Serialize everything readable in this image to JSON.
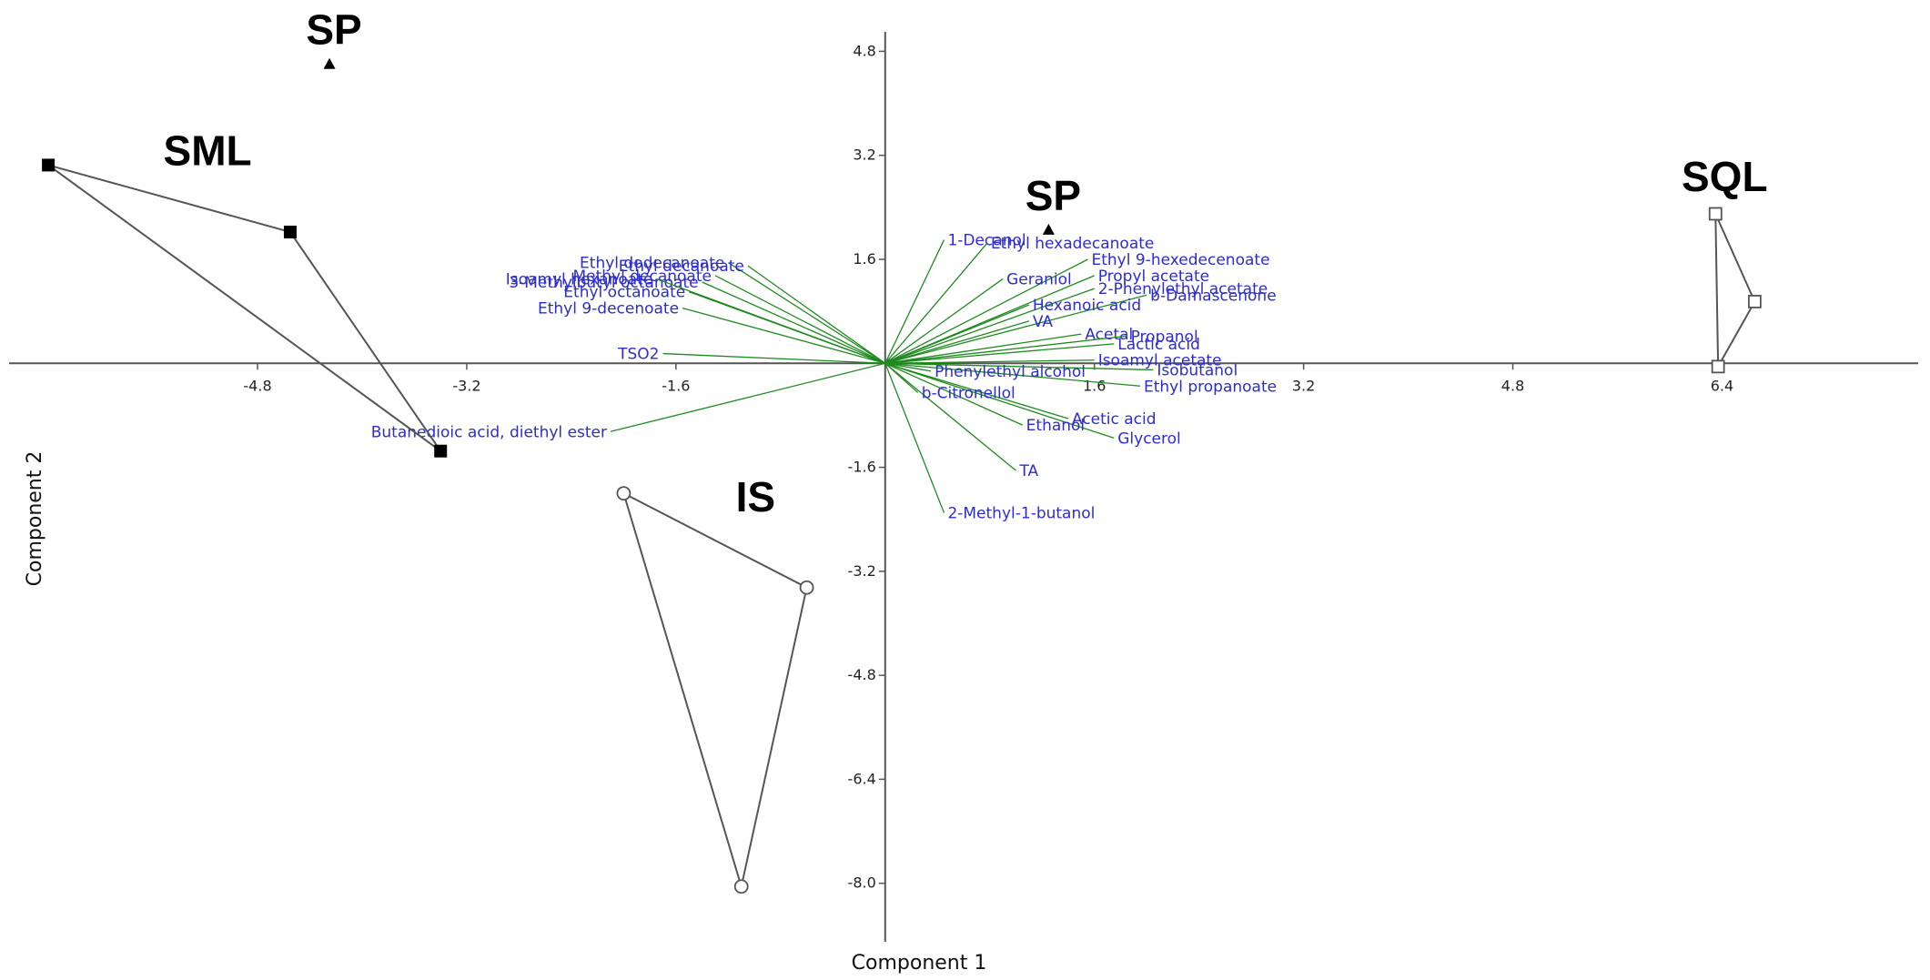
{
  "chart_data": {
    "type": "scatter",
    "title": "",
    "xlabel": "Component 1",
    "ylabel": "Component 2",
    "xlim": [
      -6.7,
      7.9
    ],
    "ylim": [
      -8.9,
      5.1
    ],
    "x_ticks": [
      -4.8,
      -3.2,
      -1.6,
      1.6,
      3.2,
      4.8,
      6.4
    ],
    "y_ticks": [
      4.8,
      3.2,
      1.6,
      -1.6,
      -3.2,
      -4.8,
      -6.4,
      -8.0
    ],
    "x_tick_labels": [
      "-4.8",
      "-3.2",
      "-1.6",
      "1.6",
      "3.2",
      "4.8",
      "6.4"
    ],
    "y_tick_labels": [
      "4.8",
      "3.2",
      "1.6",
      "-1.6",
      "-3.2",
      "-4.8",
      "-6.4",
      "-8.0"
    ],
    "grid": false,
    "groups": [
      {
        "label": "SML",
        "marker": "filled-square",
        "points": [
          [
            -6.4,
            3.05
          ],
          [
            -4.55,
            2.02
          ],
          [
            -3.4,
            -1.35
          ]
        ]
      },
      {
        "label": "SQL",
        "marker": "open-square",
        "points": [
          [
            6.35,
            2.3
          ],
          [
            6.65,
            0.95
          ],
          [
            6.37,
            -0.05
          ]
        ]
      },
      {
        "label": "IS",
        "marker": "open-circle",
        "points": [
          [
            -2.0,
            -2.0
          ],
          [
            -0.6,
            -3.45
          ],
          [
            -1.1,
            -8.05
          ]
        ]
      },
      {
        "label": "SP",
        "marker": "filled-triangle",
        "points": [
          [
            -4.25,
            4.6
          ],
          [
            1.25,
            2.05
          ]
        ]
      }
    ],
    "loadings": [
      {
        "name": "1-Decanol",
        "x": 0.45,
        "y": 1.9
      },
      {
        "name": "Ethyl hexadecanoate",
        "x": 0.78,
        "y": 1.85
      },
      {
        "name": "Ethyl 9-hexedecenoate",
        "x": 1.55,
        "y": 1.6
      },
      {
        "name": "Geraniol",
        "x": 0.9,
        "y": 1.3
      },
      {
        "name": "Propyl acetate",
        "x": 1.6,
        "y": 1.35
      },
      {
        "name": "2-Phenylethyl acetate",
        "x": 1.6,
        "y": 1.15
      },
      {
        "name": "b-Damascenone",
        "x": 2.0,
        "y": 1.05
      },
      {
        "name": "Hexanoic acid",
        "x": 1.1,
        "y": 0.9
      },
      {
        "name": "VA",
        "x": 1.1,
        "y": 0.65
      },
      {
        "name": "Acetal",
        "x": 1.5,
        "y": 0.45
      },
      {
        "name": "Propanol",
        "x": 1.85,
        "y": 0.42
      },
      {
        "name": "Lactic acid",
        "x": 1.75,
        "y": 0.3
      },
      {
        "name": "Isoamyl acetate",
        "x": 1.6,
        "y": 0.05
      },
      {
        "name": "Isobutanol",
        "x": 2.05,
        "y": -0.1
      },
      {
        "name": "Ethyl propanoate",
        "x": 1.95,
        "y": -0.35
      },
      {
        "name": "Acetic acid",
        "x": 1.4,
        "y": -0.85
      },
      {
        "name": "Glycerol",
        "x": 1.75,
        "y": -1.15
      },
      {
        "name": "Ethanol",
        "x": 1.05,
        "y": -0.95
      },
      {
        "name": "TA",
        "x": 1.0,
        "y": -1.65
      },
      {
        "name": "2-Methyl-1-butanol",
        "x": 0.45,
        "y": -2.3
      },
      {
        "name": "Phenylethyl alcohol",
        "x": 0.35,
        "y": -0.12
      },
      {
        "name": "b-Citronellol",
        "x": 0.25,
        "y": -0.45
      },
      {
        "name": "Ethyl dodecanoate",
        "x": -1.2,
        "y": 1.55
      },
      {
        "name": "Ethyl decanoate",
        "x": -1.05,
        "y": 1.5
      },
      {
        "name": "Methyl decanoate",
        "x": -1.3,
        "y": 1.35
      },
      {
        "name": "3-Methylbutyl octanoate",
        "x": -1.4,
        "y": 1.25
      },
      {
        "name": "Isoamyl hexanoate",
        "x": -1.75,
        "y": 1.3
      },
      {
        "name": "Ethyl octanoate",
        "x": -1.5,
        "y": 1.1
      },
      {
        "name": "Ethyl 9-decenoate",
        "x": -1.55,
        "y": 0.85
      },
      {
        "name": "TSO2",
        "x": -1.7,
        "y": 0.15
      },
      {
        "name": "Butanedioic acid, diethyl ester",
        "x": -2.1,
        "y": -1.05
      }
    ]
  }
}
